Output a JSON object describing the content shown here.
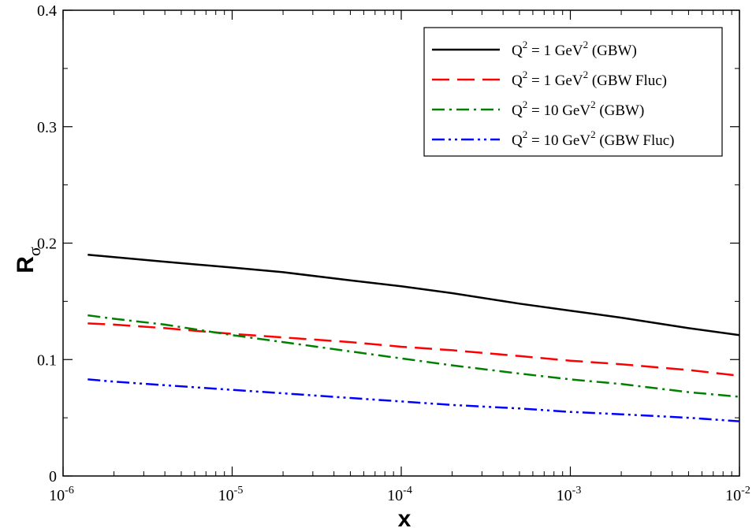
{
  "chart_data": {
    "type": "line",
    "xlabel": "x",
    "ylabel": "R",
    "ylabel_subscript": "σ",
    "x_scale": "log",
    "xlim": [
      1e-06,
      0.01
    ],
    "ylim": [
      0,
      0.4
    ],
    "grid": false,
    "legend_position": "top-right",
    "x_ticks": [
      {
        "value": 1e-06,
        "base": "10",
        "exp": "-6"
      },
      {
        "value": 1e-05,
        "base": "10",
        "exp": "-5"
      },
      {
        "value": 0.0001,
        "base": "10",
        "exp": "-4"
      },
      {
        "value": 0.001,
        "base": "10",
        "exp": "-3"
      },
      {
        "value": 0.01,
        "base": "10",
        "exp": "-2"
      }
    ],
    "y_ticks": [
      {
        "value": 0,
        "label": "0"
      },
      {
        "value": 0.1,
        "label": "0.1"
      },
      {
        "value": 0.2,
        "label": "0.2"
      },
      {
        "value": 0.3,
        "label": "0.3"
      },
      {
        "value": 0.4,
        "label": "0.4"
      }
    ],
    "series": [
      {
        "label_parts": [
          "Q",
          "2",
          " = 1 GeV",
          "2",
          " (GBW)"
        ],
        "color": "#000000",
        "style": "solid",
        "x": [
          1.4e-06,
          2e-06,
          4e-06,
          1e-05,
          2e-05,
          5e-05,
          0.0001,
          0.0002,
          0.0005,
          0.001,
          0.002,
          0.005,
          0.01
        ],
        "y": [
          0.19,
          0.188,
          0.184,
          0.179,
          0.175,
          0.168,
          0.163,
          0.157,
          0.148,
          0.142,
          0.136,
          0.127,
          0.121
        ]
      },
      {
        "label_parts": [
          "Q",
          "2",
          " = 1 GeV",
          "2",
          " (GBW Fluc)"
        ],
        "color": "#ff0000",
        "style": "dashed",
        "x": [
          1.4e-06,
          2e-06,
          4e-06,
          1e-05,
          2e-05,
          5e-05,
          0.0001,
          0.0002,
          0.0005,
          0.001,
          0.002,
          0.005,
          0.01
        ],
        "y": [
          0.131,
          0.13,
          0.127,
          0.122,
          0.119,
          0.115,
          0.111,
          0.108,
          0.103,
          0.099,
          0.096,
          0.091,
          0.086
        ]
      },
      {
        "label_parts": [
          "Q",
          "2",
          " = 10 GeV",
          "2",
          " (GBW)"
        ],
        "color": "#008000",
        "style": "dashdot",
        "x": [
          1.4e-06,
          2e-06,
          4e-06,
          1e-05,
          2e-05,
          5e-05,
          0.0001,
          0.0002,
          0.0005,
          0.001,
          0.002,
          0.005,
          0.01
        ],
        "y": [
          0.138,
          0.135,
          0.13,
          0.121,
          0.115,
          0.107,
          0.101,
          0.095,
          0.088,
          0.083,
          0.079,
          0.072,
          0.068
        ]
      },
      {
        "label_parts": [
          "Q",
          "2",
          " = 10 GeV",
          "2",
          " (GBW Fluc)"
        ],
        "color": "#0000ff",
        "style": "dashdotdot",
        "x": [
          1.4e-06,
          2e-06,
          4e-06,
          1e-05,
          2e-05,
          5e-05,
          0.0001,
          0.0002,
          0.0005,
          0.001,
          0.002,
          0.005,
          0.01
        ],
        "y": [
          0.083,
          0.081,
          0.078,
          0.074,
          0.071,
          0.067,
          0.064,
          0.061,
          0.058,
          0.055,
          0.053,
          0.05,
          0.047
        ]
      }
    ]
  }
}
